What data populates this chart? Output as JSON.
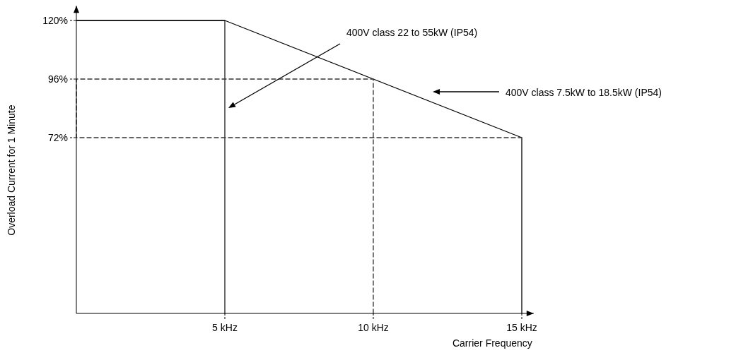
{
  "chart_data": {
    "type": "line",
    "xlabel": "Carrier Frequency",
    "ylabel": "Overload Current for 1 Minute",
    "xlim": [
      0,
      15.4
    ],
    "ylim": [
      0,
      126
    ],
    "xticks": [
      {
        "value": 5,
        "label": "5 kHz"
      },
      {
        "value": 10,
        "label": "10 kHz"
      },
      {
        "value": 15,
        "label": "15 kHz"
      }
    ],
    "yticks": [
      {
        "value": 72,
        "label": "72%"
      },
      {
        "value": 96,
        "label": "96%"
      },
      {
        "value": 120,
        "label": "120%"
      }
    ],
    "grid": false,
    "marker": "none",
    "annotations": [
      "400V class 7.5kW to 18.5kW (IP54)",
      "400V class 22 to 55kW (IP54)"
    ],
    "series": [
      {
        "color": "#000000",
        "line_style": "solid",
        "x": [
          0,
          5,
          15,
          15
        ],
        "values": [
          120,
          120,
          72,
          0
        ]
      },
      {
        "color": "#1a1a1a",
        "line_style": "solid",
        "x": [
          0,
          5,
          5
        ],
        "values": [
          120,
          120,
          0
        ]
      },
      {
        "color": "#333333",
        "line_style": "dashed",
        "x": [
          10,
          10,
          0,
          0,
          15
        ],
        "values": [
          0,
          96,
          96,
          72,
          72
        ]
      }
    ]
  }
}
